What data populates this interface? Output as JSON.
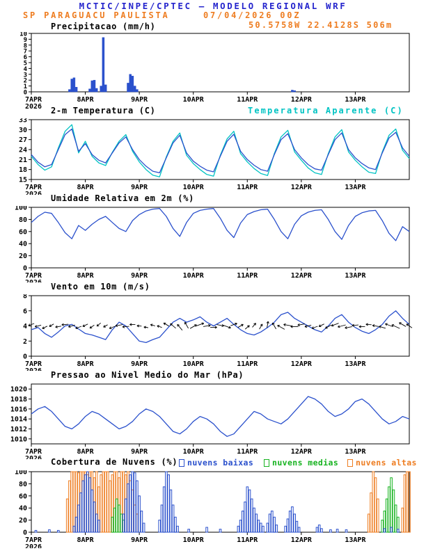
{
  "header": {
    "title": "MCTIC/INPE/CPTEC — MODELO REGIONAL WRF",
    "station": "SP PARAGUACU PAULISTA",
    "run": "07/04/2026 00Z",
    "location": "50.5758W 22.4128S 506m"
  },
  "colors": {
    "header_blue": "#2525cd",
    "orange": "#ee7d21",
    "blue": "#2a50cc",
    "cyan": "#00c3c3",
    "green": "#17b320"
  },
  "axis": {
    "x_hours": [
      0,
      168
    ],
    "xticks": [
      {
        "h": 0,
        "label": "7APR",
        "sub": "2026"
      },
      {
        "h": 24,
        "label": "8APR"
      },
      {
        "h": 48,
        "label": "9APR"
      },
      {
        "h": 72,
        "label": "10APR"
      },
      {
        "h": 96,
        "label": "11APR"
      },
      {
        "h": 120,
        "label": "12APR"
      },
      {
        "h": 144,
        "label": "13APR"
      }
    ]
  },
  "chart_data": [
    {
      "id": "precip",
      "type": "bar",
      "title": "Precipitacao (mm/h)",
      "ylim": [
        0,
        10
      ],
      "yticks": [
        0,
        1,
        2,
        3,
        4,
        5,
        6,
        7,
        8,
        9,
        10
      ],
      "color": "blue",
      "bars": [
        [
          17,
          0.4
        ],
        [
          18,
          2.2
        ],
        [
          19,
          2.4
        ],
        [
          20,
          0.8
        ],
        [
          26,
          0.5
        ],
        [
          27,
          1.9
        ],
        [
          28,
          2.0
        ],
        [
          29,
          0.6
        ],
        [
          31,
          1.0
        ],
        [
          32,
          9.3
        ],
        [
          33,
          1.2
        ],
        [
          43,
          1.5
        ],
        [
          44,
          3.0
        ],
        [
          45,
          2.7
        ],
        [
          46,
          1.0
        ],
        [
          47,
          0.4
        ],
        [
          116,
          0.3
        ],
        [
          117,
          0.2
        ]
      ]
    },
    {
      "id": "temp",
      "type": "line",
      "title": "2-m Temperatura (C)",
      "legend": {
        "label": "Temperatura Aparente (C)",
        "color": "cyan"
      },
      "ylim": [
        15,
        33
      ],
      "yticks": [
        15,
        18,
        21,
        24,
        27,
        30,
        33
      ],
      "step_hours": 3,
      "series": [
        {
          "name": "2-m Temperatura (C)",
          "color": "blue",
          "values": [
            22.5,
            20.2,
            18.8,
            19.5,
            24.0,
            28.5,
            30.2,
            23.5,
            25.8,
            22.5,
            20.8,
            20.0,
            23.0,
            26.0,
            27.8,
            24.0,
            21.0,
            19.0,
            17.5,
            17.0,
            21.5,
            26.0,
            28.3,
            23.0,
            20.5,
            19.0,
            17.8,
            17.3,
            22.0,
            26.5,
            28.6,
            23.5,
            21.0,
            19.3,
            18.0,
            17.5,
            22.5,
            27.0,
            28.8,
            24.0,
            21.5,
            19.5,
            18.2,
            17.8,
            22.5,
            27.0,
            29.0,
            24.0,
            21.5,
            19.8,
            18.5,
            18.0,
            23.0,
            27.5,
            29.2,
            24.5,
            22.0
          ]
        },
        {
          "name": "Temperatura Aparente (C)",
          "color": "cyan",
          "values": [
            22.0,
            19.5,
            17.8,
            18.8,
            24.5,
            29.5,
            31.5,
            23.0,
            26.5,
            22.0,
            20.0,
            19.2,
            23.2,
            26.5,
            28.5,
            23.5,
            20.3,
            18.0,
            16.3,
            15.8,
            21.8,
            26.5,
            29.0,
            22.3,
            19.8,
            18.0,
            16.5,
            16.0,
            22.3,
            27.2,
            29.5,
            22.8,
            20.3,
            18.3,
            16.8,
            16.2,
            22.8,
            27.8,
            29.8,
            23.3,
            20.8,
            18.5,
            17.0,
            16.5,
            22.8,
            27.8,
            30.0,
            23.3,
            20.8,
            18.8,
            17.2,
            16.8,
            23.3,
            28.3,
            30.2,
            23.8,
            21.3
          ]
        }
      ]
    },
    {
      "id": "rh",
      "type": "line",
      "title": "Umidade Relativa em 2m (%)",
      "ylim": [
        0,
        100
      ],
      "yticks": [
        0,
        20,
        40,
        60,
        80,
        100
      ],
      "step_hours": 3,
      "series": [
        {
          "name": "Umidade Relativa em 2m",
          "color": "blue",
          "values": [
            75,
            85,
            92,
            90,
            75,
            58,
            48,
            70,
            62,
            72,
            80,
            85,
            75,
            65,
            60,
            78,
            88,
            94,
            97,
            98,
            85,
            65,
            52,
            75,
            90,
            95,
            97,
            98,
            82,
            62,
            50,
            74,
            88,
            93,
            96,
            97,
            80,
            60,
            48,
            72,
            86,
            92,
            95,
            96,
            80,
            60,
            47,
            70,
            85,
            91,
            94,
            95,
            78,
            57,
            45,
            68,
            60
          ]
        }
      ]
    },
    {
      "id": "wind",
      "type": "windline",
      "title": "Vento em 10m (m/s)",
      "ylim": [
        0,
        8
      ],
      "yticks": [
        0,
        2,
        4,
        6,
        8
      ],
      "step_hours": 3,
      "barb_row_value": 4,
      "speed": [
        3.5,
        3.8,
        3.0,
        2.5,
        3.2,
        4.0,
        4.2,
        3.6,
        3.0,
        2.8,
        2.5,
        2.2,
        3.5,
        4.5,
        4.0,
        3.0,
        2.0,
        1.8,
        2.2,
        2.5,
        3.5,
        4.5,
        5.0,
        4.5,
        4.8,
        5.2,
        4.5,
        4.0,
        4.5,
        5.0,
        4.2,
        3.5,
        3.0,
        2.8,
        3.2,
        3.8,
        4.5,
        5.5,
        5.8,
        5.0,
        4.5,
        4.0,
        3.5,
        3.2,
        4.0,
        5.0,
        5.5,
        4.5,
        3.8,
        3.3,
        3.0,
        3.5,
        4.2,
        5.3,
        6.0,
        5.0,
        4.2
      ],
      "dirs_deg": [
        200,
        195,
        205,
        210,
        190,
        185,
        195,
        200,
        205,
        215,
        220,
        210,
        200,
        190,
        185,
        180,
        175,
        170,
        165,
        160,
        150,
        140,
        130,
        120,
        30,
        20,
        10,
        0,
        350,
        340,
        20,
        30,
        40,
        50,
        60,
        80,
        120,
        150,
        170,
        180,
        190,
        195,
        200,
        205,
        210,
        200,
        195,
        190,
        185,
        180,
        175,
        170,
        165,
        160,
        155,
        150,
        145
      ]
    },
    {
      "id": "pres",
      "type": "line",
      "title": "Pressao ao Nivel Medio do Mar (hPa)",
      "ylim": [
        1009,
        1021
      ],
      "yticks": [
        1010,
        1012,
        1014,
        1016,
        1018,
        1020
      ],
      "step_hours": 3,
      "series": [
        {
          "name": "Pressao ao Nivel Medio do Mar",
          "color": "blue",
          "values": [
            1015.0,
            1016.0,
            1016.5,
            1015.5,
            1014.0,
            1012.5,
            1012.0,
            1013.0,
            1014.5,
            1015.5,
            1015.0,
            1014.0,
            1013.0,
            1012.0,
            1012.5,
            1013.5,
            1015.0,
            1016.0,
            1015.5,
            1014.5,
            1013.0,
            1011.5,
            1011.0,
            1012.0,
            1013.5,
            1014.5,
            1014.0,
            1013.0,
            1011.5,
            1010.5,
            1011.0,
            1012.5,
            1014.0,
            1015.5,
            1015.0,
            1014.0,
            1013.5,
            1013.0,
            1014.0,
            1015.5,
            1017.0,
            1018.5,
            1018.0,
            1017.0,
            1015.5,
            1014.5,
            1015.0,
            1016.0,
            1017.5,
            1018.0,
            1017.0,
            1015.5,
            1014.0,
            1013.0,
            1013.5,
            1014.5,
            1014.0
          ]
        }
      ]
    },
    {
      "id": "clouds",
      "type": "cloudbars",
      "title": "Cobertura de Nuvens (%)",
      "ylim": [
        0,
        100
      ],
      "yticks": [
        0,
        20,
        40,
        60,
        80,
        100
      ],
      "legends": [
        {
          "label": "nuvens baixas",
          "color": "blue"
        },
        {
          "label": "nuvens medias",
          "color": "green"
        },
        {
          "label": "nuvens altas",
          "color": "orange"
        }
      ],
      "series": {
        "baixas": [
          [
            2,
            3
          ],
          [
            8,
            4
          ],
          [
            12,
            3
          ],
          [
            19,
            10
          ],
          [
            20,
            25
          ],
          [
            21,
            45
          ],
          [
            22,
            65
          ],
          [
            23,
            85
          ],
          [
            24,
            95
          ],
          [
            25,
            100
          ],
          [
            26,
            90
          ],
          [
            27,
            70
          ],
          [
            28,
            50
          ],
          [
            29,
            30
          ],
          [
            30,
            20
          ],
          [
            41,
            30
          ],
          [
            42,
            55
          ],
          [
            43,
            80
          ],
          [
            44,
            95
          ],
          [
            45,
            100
          ],
          [
            46,
            98
          ],
          [
            47,
            85
          ],
          [
            48,
            60
          ],
          [
            49,
            35
          ],
          [
            50,
            15
          ],
          [
            57,
            20
          ],
          [
            58,
            45
          ],
          [
            59,
            75
          ],
          [
            60,
            100
          ],
          [
            61,
            95
          ],
          [
            62,
            70
          ],
          [
            63,
            45
          ],
          [
            64,
            25
          ],
          [
            65,
            10
          ],
          [
            70,
            5
          ],
          [
            78,
            8
          ],
          [
            84,
            5
          ],
          [
            92,
            10
          ],
          [
            93,
            20
          ],
          [
            94,
            35
          ],
          [
            95,
            50
          ],
          [
            96,
            75
          ],
          [
            97,
            70
          ],
          [
            98,
            55
          ],
          [
            99,
            40
          ],
          [
            100,
            30
          ],
          [
            101,
            20
          ],
          [
            102,
            15
          ],
          [
            103,
            10
          ],
          [
            105,
            15
          ],
          [
            106,
            30
          ],
          [
            107,
            35
          ],
          [
            108,
            25
          ],
          [
            109,
            12
          ],
          [
            113,
            10
          ],
          [
            114,
            22
          ],
          [
            115,
            35
          ],
          [
            116,
            42
          ],
          [
            117,
            30
          ],
          [
            118,
            18
          ],
          [
            119,
            8
          ],
          [
            127,
            8
          ],
          [
            128,
            12
          ],
          [
            129,
            6
          ],
          [
            133,
            4
          ],
          [
            136,
            5
          ],
          [
            140,
            4
          ],
          [
            157,
            6
          ],
          [
            160,
            8
          ],
          [
            163,
            5
          ]
        ],
        "medias": [
          [
            36,
            25
          ],
          [
            37,
            40
          ],
          [
            38,
            55
          ],
          [
            39,
            45
          ],
          [
            40,
            30
          ],
          [
            41,
            20
          ],
          [
            156,
            20
          ],
          [
            157,
            35
          ],
          [
            158,
            55
          ],
          [
            159,
            75
          ],
          [
            160,
            90
          ],
          [
            161,
            70
          ],
          [
            162,
            45
          ],
          [
            163,
            25
          ]
        ],
        "altas": [
          [
            16,
            55
          ],
          [
            17,
            85
          ],
          [
            18,
            100
          ],
          [
            19,
            100
          ],
          [
            20,
            100
          ],
          [
            21,
            98
          ],
          [
            22,
            100
          ],
          [
            23,
            100
          ],
          [
            24,
            100
          ],
          [
            25,
            95
          ],
          [
            26,
            100
          ],
          [
            27,
            100
          ],
          [
            28,
            90
          ],
          [
            29,
            100
          ],
          [
            30,
            75
          ],
          [
            31,
            95
          ],
          [
            32,
            100
          ],
          [
            33,
            100
          ],
          [
            34,
            100
          ],
          [
            35,
            85
          ],
          [
            36,
            95
          ],
          [
            37,
            100
          ],
          [
            38,
            100
          ],
          [
            39,
            90
          ],
          [
            40,
            100
          ],
          [
            41,
            100
          ],
          [
            42,
            95
          ],
          [
            43,
            100
          ],
          [
            44,
            85
          ],
          [
            45,
            70
          ],
          [
            46,
            45
          ],
          [
            47,
            30
          ],
          [
            150,
            30
          ],
          [
            151,
            65
          ],
          [
            152,
            100
          ],
          [
            153,
            90
          ],
          [
            154,
            55
          ],
          [
            165,
            40
          ],
          [
            166,
            95
          ],
          [
            167,
            100
          ],
          [
            168,
            100
          ]
        ]
      }
    }
  ]
}
